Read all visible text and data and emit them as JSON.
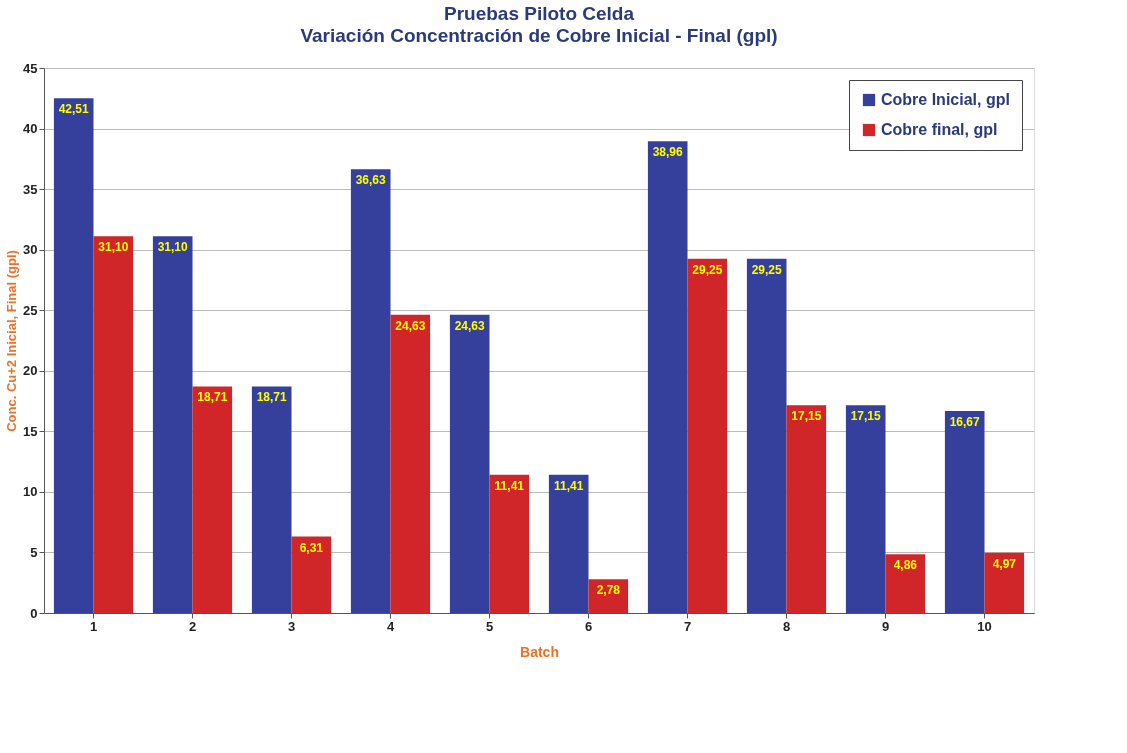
{
  "chart_data": {
    "type": "bar",
    "title": "Pruebas Piloto Celda",
    "subtitle": "Variación Concentración de Cobre Inicial - Final (gpl)",
    "xlabel": "Batch",
    "ylabel": "Conc. Cu+2 Inicial, Final (gpl)",
    "categories": [
      "1",
      "2",
      "3",
      "4",
      "5",
      "6",
      "7",
      "8",
      "9",
      "10"
    ],
    "series": [
      {
        "name": "Cobre Inicial, gpl",
        "color": "#34409c",
        "values": [
          42.51,
          31.1,
          18.71,
          36.63,
          24.63,
          11.41,
          38.96,
          29.25,
          17.15,
          16.67
        ],
        "value_labels": [
          "42,51",
          "31,10",
          "18,71",
          "36,63",
          "24,63",
          "11,41",
          "38,96",
          "29,25",
          "17,15",
          "16,67"
        ]
      },
      {
        "name": "Cobre final, gpl",
        "color": "#d0262a",
        "values": [
          31.1,
          18.71,
          6.31,
          24.63,
          11.41,
          2.78,
          29.25,
          17.15,
          4.86,
          4.97
        ],
        "value_labels": [
          "31,10",
          "18,71",
          "6,31",
          "24,63",
          "11,41",
          "2,78",
          "29,25",
          "17,15",
          "4,86",
          "4,97"
        ]
      }
    ],
    "ylim": [
      0,
      45
    ],
    "yticks": [
      0,
      5,
      10,
      15,
      20,
      25,
      30,
      35,
      40,
      45
    ],
    "grid": "y",
    "legend": "top right"
  }
}
